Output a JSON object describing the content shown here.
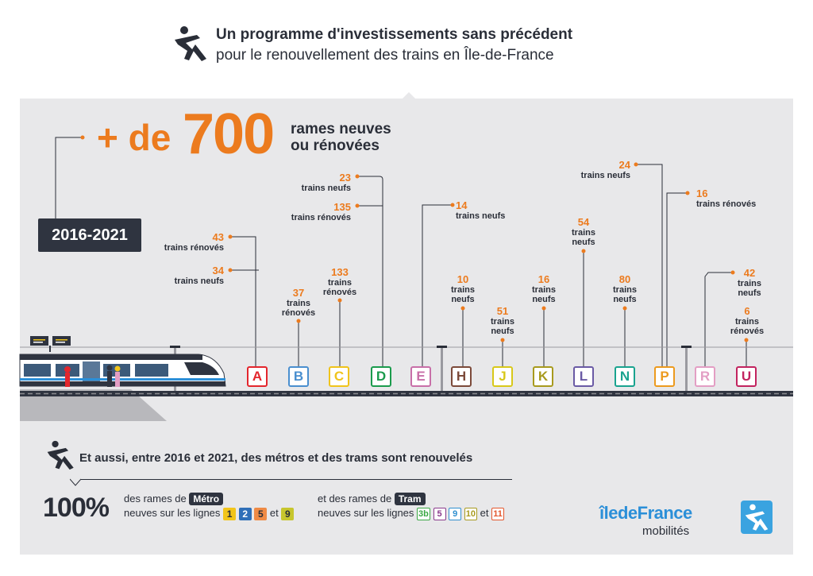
{
  "header": {
    "title": "Un programme d'investissements sans précédent",
    "subtitle": "pour le renouvellement des trains en Île-de-France"
  },
  "headline": {
    "plus": "+ de",
    "number": "700",
    "line1": "rames neuves",
    "line2": "ou rénovées"
  },
  "period": "2016-2021",
  "lines": [
    {
      "letter": "A",
      "color": "#e3262d",
      "annotations": [
        {
          "value": "43",
          "label": "trains rénovés"
        },
        {
          "value": "34",
          "label": "trains neufs"
        }
      ]
    },
    {
      "letter": "B",
      "color": "#4a8fcf",
      "annotations": [
        {
          "value": "37",
          "label": "trains rénovés"
        }
      ]
    },
    {
      "letter": "C",
      "color": "#f0c41b",
      "annotations": [
        {
          "value": "133",
          "label": "trains rénovés"
        }
      ]
    },
    {
      "letter": "D",
      "color": "#1b9b4d",
      "annotations": [
        {
          "value": "23",
          "label": "trains neufs"
        },
        {
          "value": "135",
          "label": "trains rénovés"
        }
      ]
    },
    {
      "letter": "E",
      "color": "#c86fa8",
      "annotations": [
        {
          "value": "14",
          "label": "trains neufs"
        }
      ]
    },
    {
      "letter": "H",
      "color": "#7c4a3a",
      "annotations": [
        {
          "value": "10",
          "label": "trains neufs"
        }
      ]
    },
    {
      "letter": "J",
      "color": "#d8c81a",
      "annotations": [
        {
          "value": "51",
          "label": "trains neufs"
        }
      ]
    },
    {
      "letter": "K",
      "color": "#a89a1e",
      "annotations": [
        {
          "value": "16",
          "label": "trains neufs"
        }
      ]
    },
    {
      "letter": "L",
      "color": "#6a5aa5",
      "annotations": [
        {
          "value": "54",
          "label": "trains neufs"
        }
      ]
    },
    {
      "letter": "N",
      "color": "#19a38f",
      "annotations": [
        {
          "value": "80",
          "label": "trains neufs"
        }
      ]
    },
    {
      "letter": "P",
      "color": "#ec9a1e",
      "annotations": [
        {
          "value": "24",
          "label": "trains neufs"
        },
        {
          "value": "16",
          "label": "trains rénovés"
        }
      ]
    },
    {
      "letter": "R",
      "color": "#e39ec4",
      "annotations": [
        {
          "value": "42",
          "label": "trains neufs"
        }
      ]
    },
    {
      "letter": "U",
      "color": "#c2235f",
      "annotations": [
        {
          "value": "6",
          "label": "trains rénovés"
        }
      ]
    }
  ],
  "section2": {
    "title": "Et aussi, entre 2016 et 2021, des métros et des trams sont renouvelés",
    "percent": "100%",
    "metro_prefix": "des rames de",
    "metro_tag": "Métro",
    "metro_text": "neuves sur les lignes",
    "metro_lines": [
      {
        "label": "1",
        "color": "#f2c51a",
        "text_color": "#2a2e38"
      },
      {
        "label": "2",
        "color": "#2f6fb8",
        "text_color": "#ffffff"
      },
      {
        "label": "5",
        "color": "#ef8a45",
        "text_color": "#2a2e38"
      },
      {
        "label": "9",
        "color": "#c7c62e",
        "text_color": "#2a2e38"
      }
    ],
    "and": "et",
    "tram_prefix": "et des rames de",
    "tram_tag": "Tram",
    "tram_text": "neuves sur les lignes",
    "tram_lines": [
      {
        "label": "3b",
        "color": "#3aa843"
      },
      {
        "label": "5",
        "color": "#8a3a8c"
      },
      {
        "label": "9",
        "color": "#2f8fcf"
      },
      {
        "label": "10",
        "color": "#a89a1e"
      },
      {
        "label": "11",
        "color": "#e3562d"
      }
    ]
  },
  "brand": {
    "name": "îledeFrance",
    "sub": "mobilités"
  },
  "colors": {
    "accent": "#ec7b1e",
    "dark": "#2f3440",
    "panel": "#e8e8ea"
  }
}
